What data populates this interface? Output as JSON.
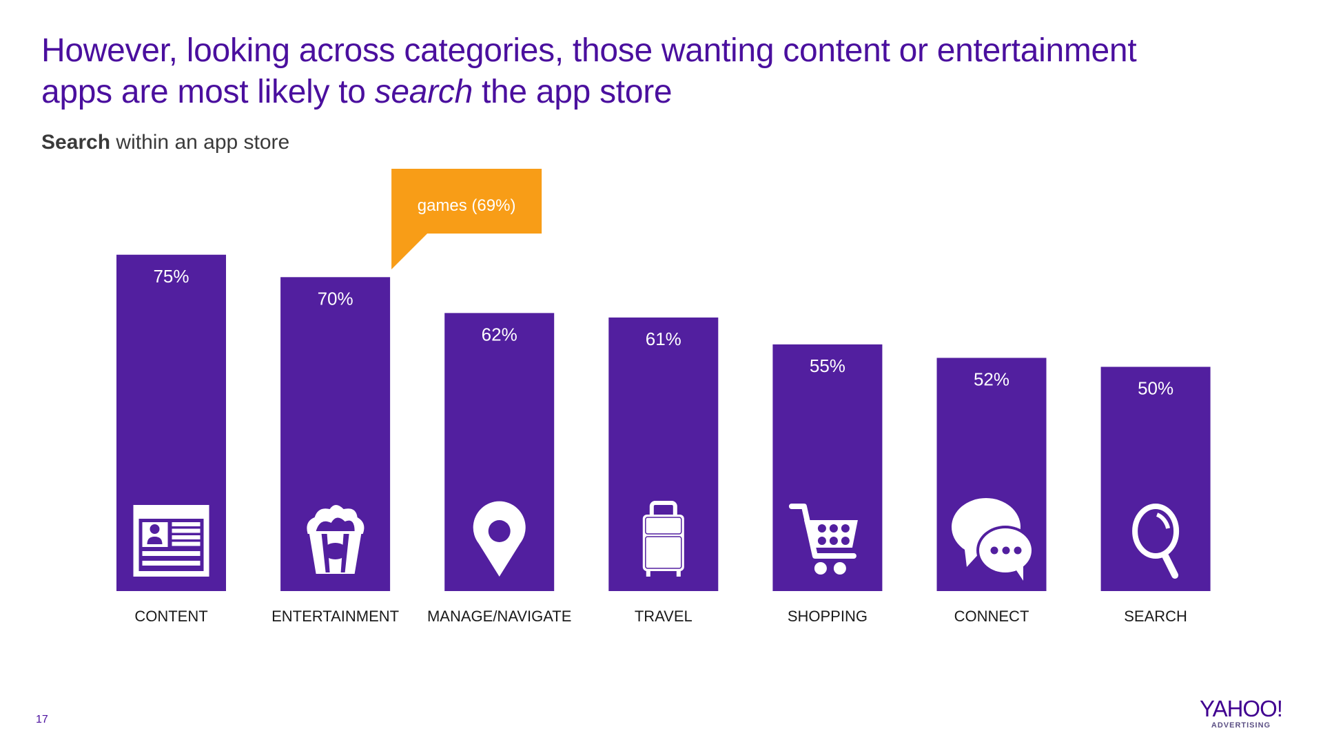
{
  "slide": {
    "title_line1": "However, looking across categories, those wanting content or entertainment",
    "title_line2_before": "apps are most likely to ",
    "title_line2_emph": "search",
    "title_line2_after": " the app store",
    "subtitle_bold": "Search",
    "subtitle_rest": " within an app store",
    "page_number": "17",
    "logo_text": "YAHOO!",
    "logo_subtext": "ADVERTISING"
  },
  "colors": {
    "bar": "#521f9f",
    "callout": "#f89d17",
    "title": "#4a0f9e",
    "label": "#1a1a1a",
    "bar_text": "#ffffff"
  },
  "chart_data": {
    "type": "bar",
    "title": "Search within an app store",
    "xlabel": "",
    "ylabel": "",
    "ylim": [
      0,
      75
    ],
    "grid": false,
    "categories": [
      "CONTENT",
      "ENTERTAINMENT",
      "MANAGE/NAVIGATE",
      "TRAVEL",
      "SHOPPING",
      "CONNECT",
      "SEARCH"
    ],
    "values": [
      75,
      70,
      62,
      61,
      55,
      52,
      50
    ],
    "value_labels": [
      "75%",
      "70%",
      "62%",
      "61%",
      "55%",
      "52%",
      "50%"
    ],
    "icons": [
      "news-article-icon",
      "popcorn-icon",
      "map-pin-icon",
      "suitcase-icon",
      "shopping-cart-icon",
      "chat-bubbles-icon",
      "magnifier-icon"
    ],
    "annotation": {
      "text": "games (69%)",
      "attached_to": "ENTERTAINMENT",
      "value": 69
    }
  }
}
